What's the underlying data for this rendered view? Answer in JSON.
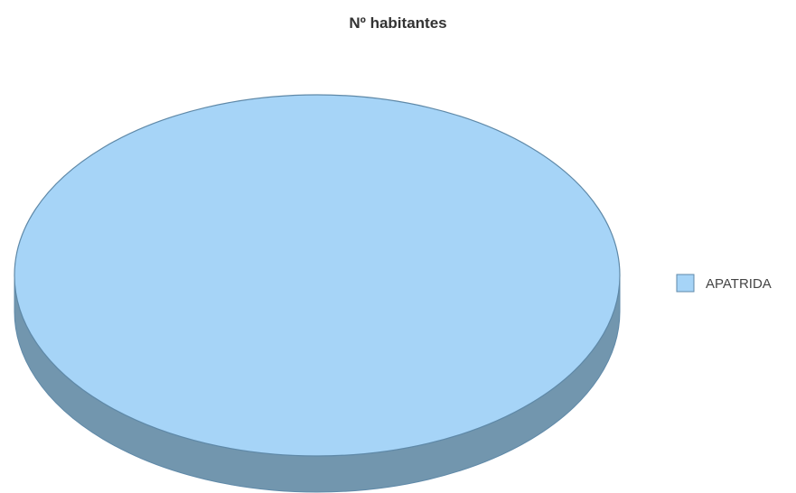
{
  "chart_data": {
    "type": "pie",
    "title": "Nº habitantes",
    "slices": [
      {
        "label": "APATRIDA",
        "value": 100,
        "color": "#a6d4f7",
        "side_color": "#7296ae"
      }
    ],
    "legend_position": "right",
    "style": "3d"
  }
}
